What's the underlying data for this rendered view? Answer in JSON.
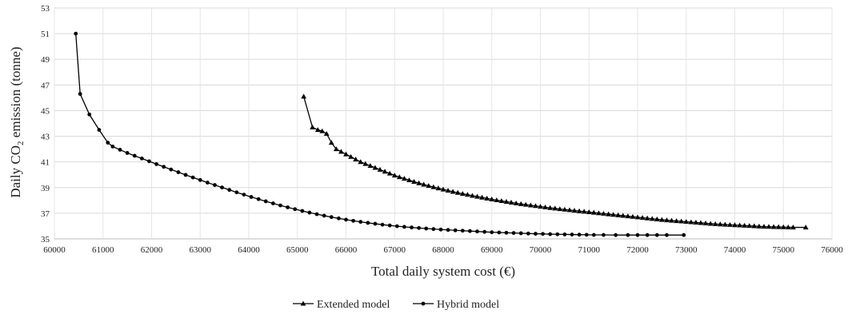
{
  "chart_data": {
    "type": "line",
    "title": "",
    "xlabel": "Total daily system cost (€)",
    "ylabel_main": "Daily CO",
    "ylabel_sub": "2",
    "ylabel_rest": " emission (tonne)",
    "xlim": [
      60000,
      76000
    ],
    "ylim": [
      35,
      53
    ],
    "xticks": [
      60000,
      61000,
      62000,
      63000,
      64000,
      65000,
      66000,
      67000,
      68000,
      69000,
      70000,
      71000,
      72000,
      73000,
      74000,
      75000,
      76000
    ],
    "yticks": [
      35,
      37,
      39,
      41,
      43,
      45,
      47,
      49,
      51,
      53
    ],
    "grid": "horizontal",
    "legend_position": "bottom",
    "series": [
      {
        "name": "Extended model",
        "marker": "triangle",
        "points": [
          [
            65130,
            46.1
          ],
          [
            65310,
            43.7
          ],
          [
            65420,
            43.5
          ],
          [
            65510,
            43.4
          ],
          [
            65600,
            43.2
          ],
          [
            65700,
            42.5
          ],
          [
            65800,
            42.0
          ],
          [
            65900,
            41.8
          ],
          [
            66000,
            41.6
          ],
          [
            66100,
            41.4
          ],
          [
            66200,
            41.2
          ],
          [
            66300,
            41.0
          ],
          [
            66400,
            40.85
          ],
          [
            66500,
            40.7
          ],
          [
            66600,
            40.55
          ],
          [
            66700,
            40.4
          ],
          [
            66800,
            40.25
          ],
          [
            66900,
            40.1
          ],
          [
            67000,
            39.95
          ],
          [
            67100,
            39.82
          ],
          [
            67200,
            39.7
          ],
          [
            67300,
            39.58
          ],
          [
            67400,
            39.46
          ],
          [
            67500,
            39.35
          ],
          [
            67600,
            39.24
          ],
          [
            67700,
            39.14
          ],
          [
            67800,
            39.04
          ],
          [
            67900,
            38.95
          ],
          [
            68000,
            38.86
          ],
          [
            68100,
            38.77
          ],
          [
            68200,
            38.68
          ],
          [
            68300,
            38.6
          ],
          [
            68400,
            38.52
          ],
          [
            68500,
            38.45
          ],
          [
            68600,
            38.37
          ],
          [
            68700,
            38.3
          ],
          [
            68800,
            38.23
          ],
          [
            68900,
            38.16
          ],
          [
            69000,
            38.09
          ],
          [
            69100,
            38.02
          ],
          [
            69200,
            37.96
          ],
          [
            69300,
            37.9
          ],
          [
            69400,
            37.84
          ],
          [
            69500,
            37.78
          ],
          [
            69600,
            37.72
          ],
          [
            69700,
            37.67
          ],
          [
            69800,
            37.62
          ],
          [
            69900,
            37.57
          ],
          [
            70000,
            37.52
          ],
          [
            70100,
            37.47
          ],
          [
            70200,
            37.42
          ],
          [
            70300,
            37.38
          ],
          [
            70400,
            37.33
          ],
          [
            70500,
            37.29
          ],
          [
            70600,
            37.25
          ],
          [
            70700,
            37.21
          ],
          [
            70800,
            37.17
          ],
          [
            70900,
            37.13
          ],
          [
            71000,
            37.09
          ],
          [
            71100,
            37.05
          ],
          [
            71200,
            37.01
          ],
          [
            71300,
            36.97
          ],
          [
            71400,
            36.93
          ],
          [
            71500,
            36.89
          ],
          [
            71600,
            36.85
          ],
          [
            71700,
            36.81
          ],
          [
            71800,
            36.77
          ],
          [
            71900,
            36.73
          ],
          [
            72000,
            36.69
          ],
          [
            72100,
            36.65
          ],
          [
            72200,
            36.61
          ],
          [
            72300,
            36.57
          ],
          [
            72400,
            36.53
          ],
          [
            72500,
            36.49
          ],
          [
            72600,
            36.46
          ],
          [
            72700,
            36.43
          ],
          [
            72800,
            36.4
          ],
          [
            72900,
            36.37
          ],
          [
            73000,
            36.34
          ],
          [
            73100,
            36.31
          ],
          [
            73200,
            36.28
          ],
          [
            73300,
            36.25
          ],
          [
            73400,
            36.22
          ],
          [
            73500,
            36.19
          ],
          [
            73600,
            36.16
          ],
          [
            73700,
            36.14
          ],
          [
            73800,
            36.12
          ],
          [
            73900,
            36.1
          ],
          [
            74000,
            36.08
          ],
          [
            74100,
            36.06
          ],
          [
            74200,
            36.04
          ],
          [
            74300,
            36.02
          ],
          [
            74400,
            36.0
          ],
          [
            74500,
            35.98
          ],
          [
            74600,
            35.96
          ],
          [
            74700,
            35.95
          ],
          [
            74800,
            35.94
          ],
          [
            74900,
            35.93
          ],
          [
            75000,
            35.92
          ],
          [
            75100,
            35.91
          ],
          [
            75200,
            35.9
          ],
          [
            75460,
            35.9
          ]
        ]
      },
      {
        "name": "Hybrid model",
        "marker": "circle",
        "points": [
          [
            60440,
            51.0
          ],
          [
            60530,
            46.3
          ],
          [
            60720,
            44.7
          ],
          [
            60920,
            43.5
          ],
          [
            61100,
            42.5
          ],
          [
            61200,
            42.2
          ],
          [
            61350,
            41.95
          ],
          [
            61500,
            41.7
          ],
          [
            61650,
            41.48
          ],
          [
            61800,
            41.27
          ],
          [
            61950,
            41.05
          ],
          [
            62100,
            40.83
          ],
          [
            62250,
            40.62
          ],
          [
            62400,
            40.41
          ],
          [
            62550,
            40.2
          ],
          [
            62700,
            39.99
          ],
          [
            62850,
            39.79
          ],
          [
            63000,
            39.59
          ],
          [
            63150,
            39.39
          ],
          [
            63300,
            39.2
          ],
          [
            63450,
            39.01
          ],
          [
            63600,
            38.82
          ],
          [
            63750,
            38.63
          ],
          [
            63900,
            38.45
          ],
          [
            64050,
            38.27
          ],
          [
            64200,
            38.1
          ],
          [
            64350,
            37.93
          ],
          [
            64500,
            37.77
          ],
          [
            64650,
            37.61
          ],
          [
            64800,
            37.46
          ],
          [
            64950,
            37.32
          ],
          [
            65100,
            37.18
          ],
          [
            65250,
            37.05
          ],
          [
            65400,
            36.93
          ],
          [
            65550,
            36.81
          ],
          [
            65700,
            36.7
          ],
          [
            65850,
            36.6
          ],
          [
            66000,
            36.5
          ],
          [
            66150,
            36.41
          ],
          [
            66300,
            36.33
          ],
          [
            66450,
            36.25
          ],
          [
            66600,
            36.18
          ],
          [
            66750,
            36.11
          ],
          [
            66900,
            36.05
          ],
          [
            67050,
            35.99
          ],
          [
            67200,
            35.94
          ],
          [
            67350,
            35.89
          ],
          [
            67500,
            35.85
          ],
          [
            67650,
            35.81
          ],
          [
            67800,
            35.77
          ],
          [
            67950,
            35.73
          ],
          [
            68100,
            35.7
          ],
          [
            68250,
            35.67
          ],
          [
            68400,
            35.64
          ],
          [
            68550,
            35.61
          ],
          [
            68700,
            35.58
          ],
          [
            68850,
            35.55
          ],
          [
            69000,
            35.52
          ],
          [
            69150,
            35.5
          ],
          [
            69300,
            35.48
          ],
          [
            69450,
            35.46
          ],
          [
            69600,
            35.44
          ],
          [
            69750,
            35.42
          ],
          [
            69900,
            35.4
          ],
          [
            70050,
            35.39
          ],
          [
            70200,
            35.37
          ],
          [
            70350,
            35.36
          ],
          [
            70500,
            35.35
          ],
          [
            70650,
            35.34
          ],
          [
            70800,
            35.33
          ],
          [
            70950,
            35.32
          ],
          [
            71100,
            35.31
          ],
          [
            71300,
            35.31
          ],
          [
            71550,
            35.3
          ],
          [
            71800,
            35.3
          ],
          [
            72000,
            35.3
          ],
          [
            72200,
            35.3
          ],
          [
            72400,
            35.3
          ],
          [
            72600,
            35.3
          ],
          [
            72950,
            35.3
          ]
        ]
      }
    ]
  }
}
